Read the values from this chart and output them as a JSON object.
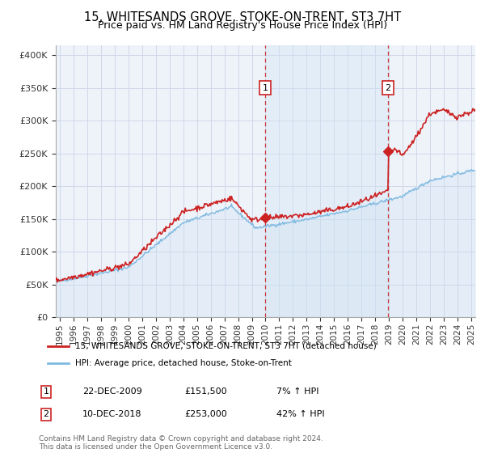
{
  "title": "15, WHITESANDS GROVE, STOKE-ON-TRENT, ST3 7HT",
  "subtitle": "Price paid vs. HM Land Registry's House Price Index (HPI)",
  "title_fontsize": 10.5,
  "subtitle_fontsize": 9,
  "ylabel_ticks": [
    "£0",
    "£50K",
    "£100K",
    "£150K",
    "£200K",
    "£250K",
    "£300K",
    "£350K",
    "£400K"
  ],
  "ytick_values": [
    0,
    50000,
    100000,
    150000,
    200000,
    250000,
    300000,
    350000,
    400000
  ],
  "ylim": [
    0,
    415000
  ],
  "xlim_start": 1994.7,
  "xlim_end": 2025.3,
  "xtick_years": [
    1995,
    1996,
    1997,
    1998,
    1999,
    2000,
    2001,
    2002,
    2003,
    2004,
    2005,
    2006,
    2007,
    2008,
    2009,
    2010,
    2011,
    2012,
    2013,
    2014,
    2015,
    2016,
    2017,
    2018,
    2019,
    2020,
    2021,
    2022,
    2023,
    2024,
    2025
  ],
  "sale1_x": 2009.97,
  "sale1_y": 151500,
  "sale2_x": 2018.94,
  "sale2_y": 253000,
  "sale1_date": "22-DEC-2009",
  "sale1_price": "£151,500",
  "sale1_hpi": "7% ↑ HPI",
  "sale2_date": "10-DEC-2018",
  "sale2_price": "£253,000",
  "sale2_hpi": "42% ↑ HPI",
  "hpi_color": "#7fb9e0",
  "hpi_fill_color": "#c8dff0",
  "price_color": "#cc2222",
  "bg_color": "#ffffff",
  "plot_bg": "#eef3fa",
  "grid_color": "#d0d8e8",
  "vline_color": "#cc2222",
  "marker_color": "#cc2222",
  "shade_color": "#d0e4f5",
  "legend_line1": "15, WHITESANDS GROVE, STOKE-ON-TRENT, ST3 7HT (detached house)",
  "legend_line2": "HPI: Average price, detached house, Stoke-on-Trent",
  "footnote": "Contains HM Land Registry data © Crown copyright and database right 2024.\nThis data is licensed under the Open Government Licence v3.0.",
  "sale_box_color": "#cc2222"
}
